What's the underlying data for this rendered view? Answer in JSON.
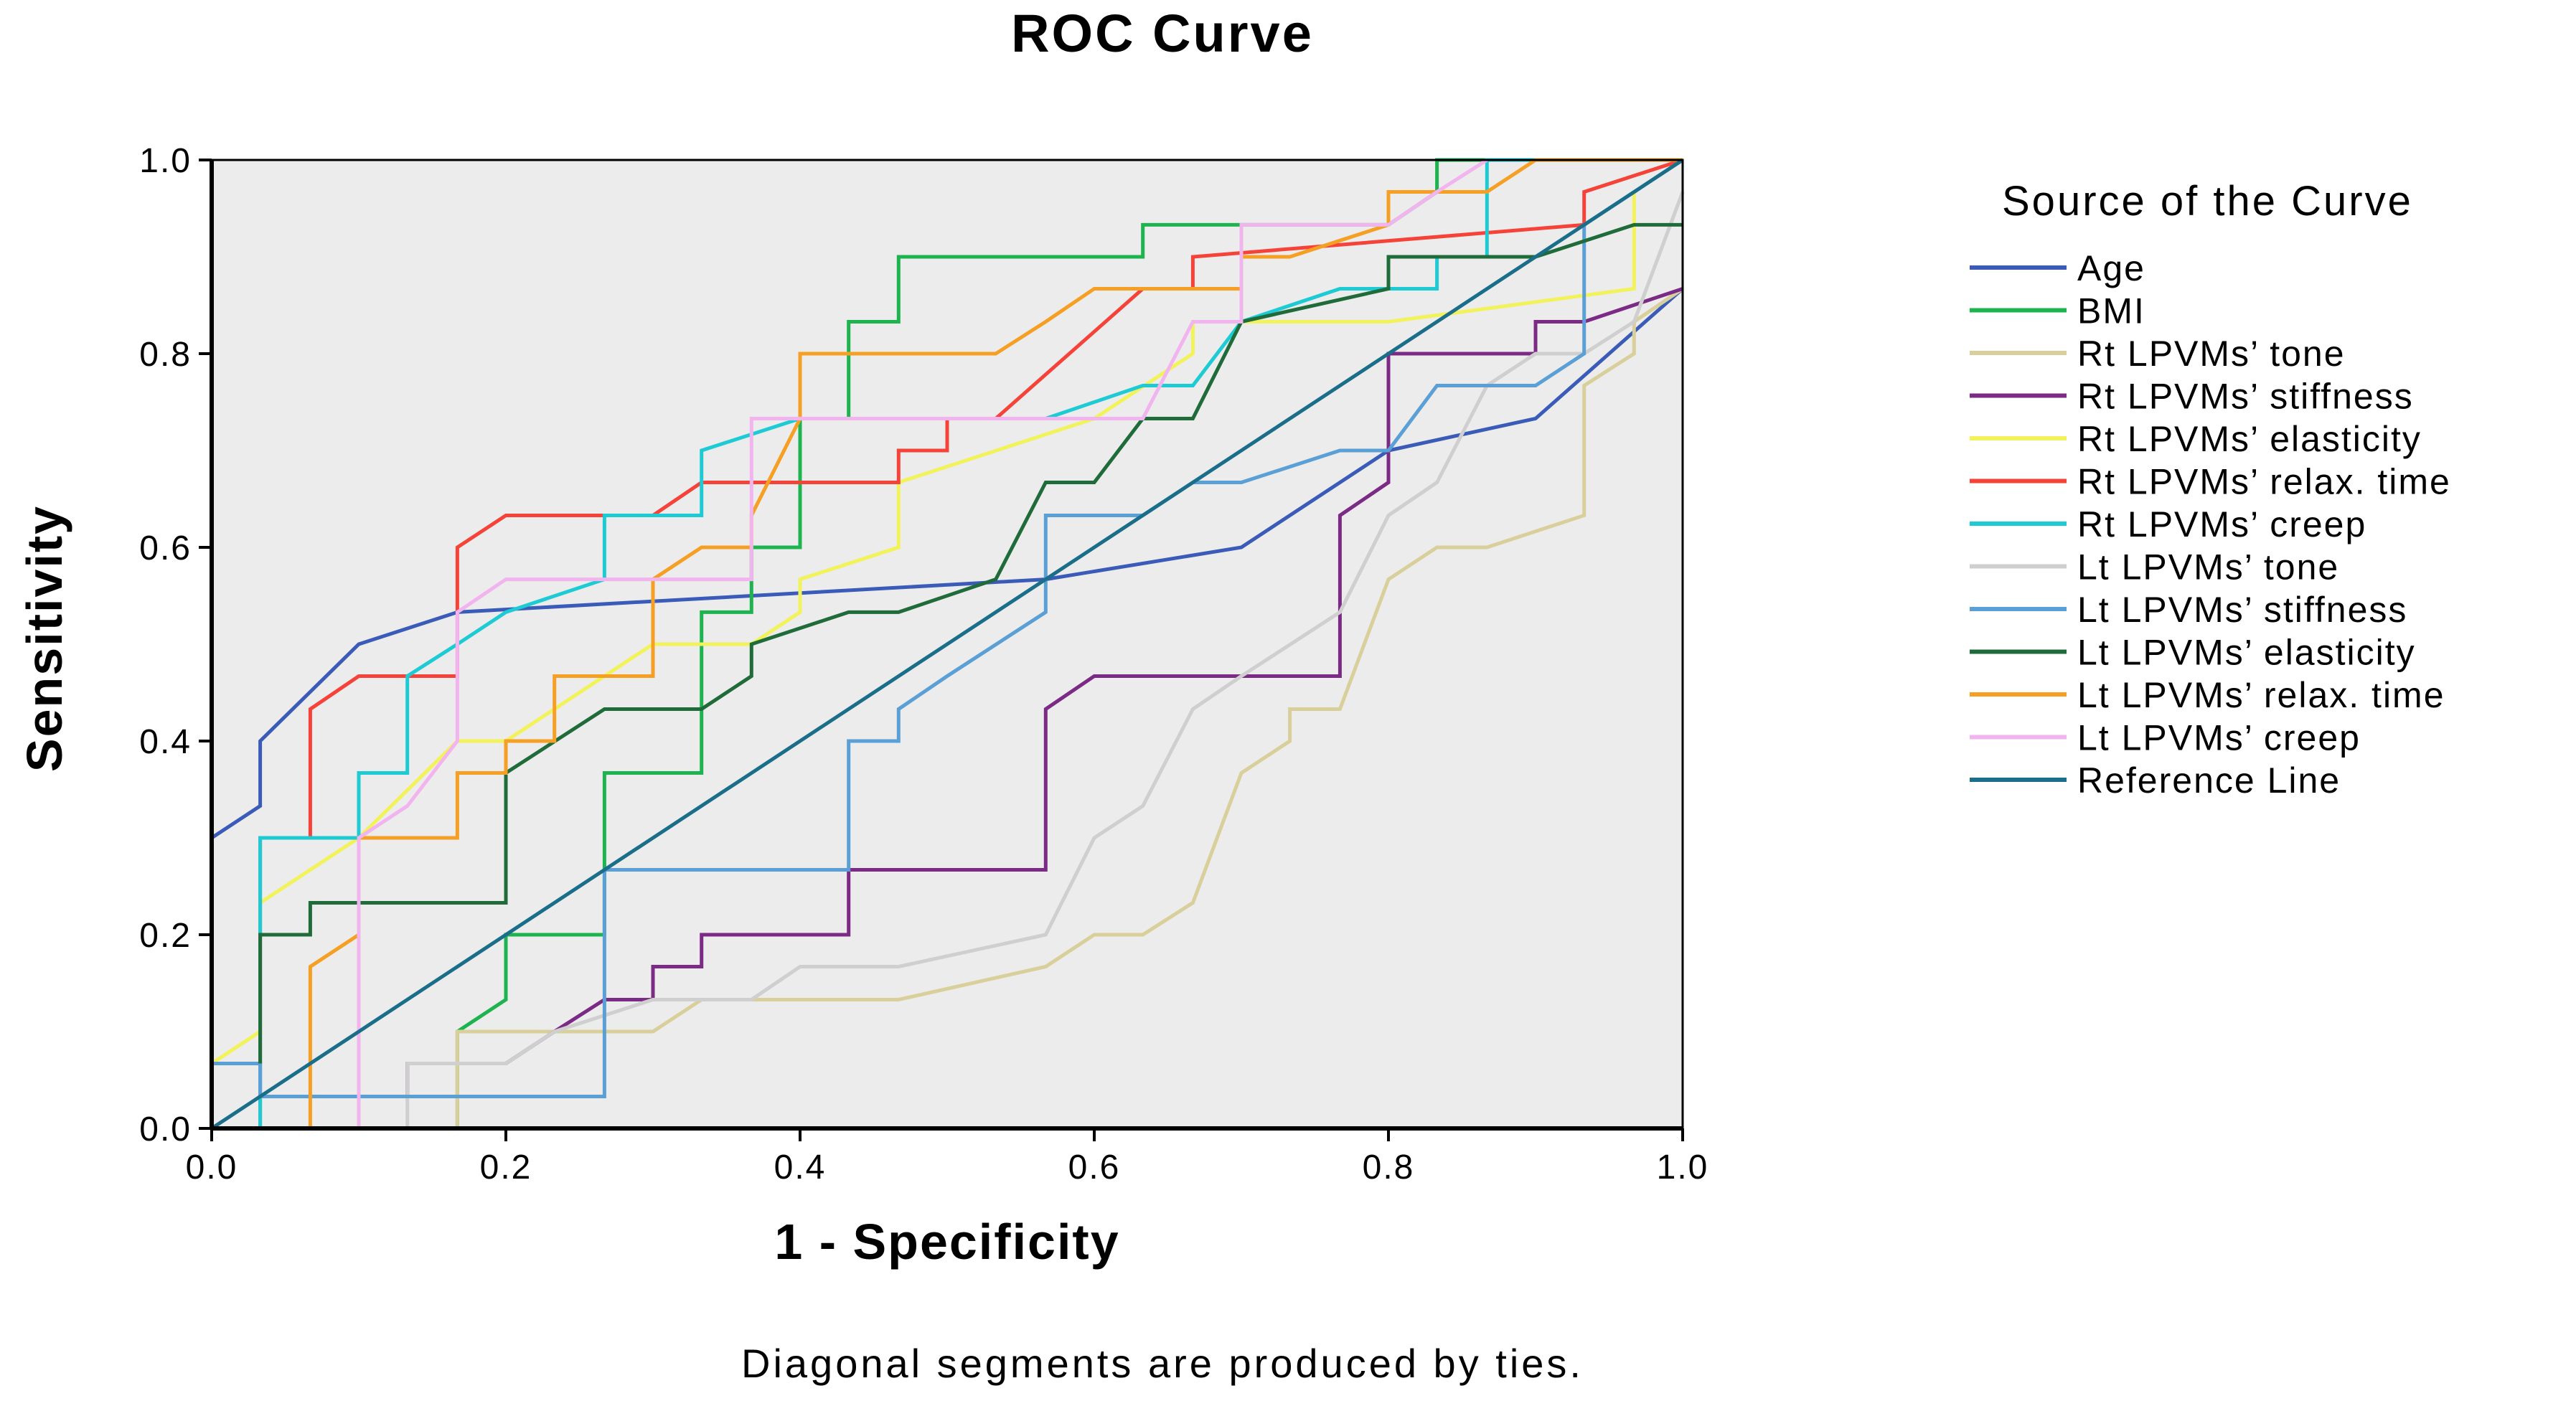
{
  "chart_data": {
    "type": "line",
    "title": "ROC Curve",
    "xlabel": "1 - Specificity",
    "ylabel": "Sensitivity",
    "xlim": [
      0,
      1
    ],
    "ylim": [
      0,
      1
    ],
    "x_ticks": [
      "0.0",
      "0.2",
      "0.4",
      "0.6",
      "0.8",
      "1.0"
    ],
    "y_ticks": [
      "0.0",
      "0.2",
      "0.4",
      "0.6",
      "0.8",
      "1.0"
    ],
    "grid": false,
    "plot_background": "#ececec",
    "legend": {
      "title": "Source of the Curve",
      "position": "right"
    },
    "footnote": "Diagonal segments are produced by ties.",
    "series": [
      {
        "name": "Age",
        "color": "#3a5cb8",
        "x": [
          0,
          0,
          0.033,
          0.033,
          0.1,
          0.167,
          0.567,
          0.7,
          0.8,
          0.9,
          1.0
        ],
        "y": [
          0,
          0.3,
          0.333,
          0.4,
          0.5,
          0.533,
          0.567,
          0.6,
          0.7,
          0.733,
          0.867
        ]
      },
      {
        "name": "BMI",
        "color": "#1db34f",
        "x": [
          0.167,
          0.167,
          0.2,
          0.2,
          0.267,
          0.267,
          0.333,
          0.333,
          0.367,
          0.367,
          0.4,
          0.4,
          0.433,
          0.433,
          0.467,
          0.467,
          0.633,
          0.633,
          0.8,
          0.833,
          0.833,
          1.0
        ],
        "y": [
          0,
          0.1,
          0.133,
          0.2,
          0.2,
          0.367,
          0.367,
          0.533,
          0.533,
          0.6,
          0.6,
          0.733,
          0.733,
          0.833,
          0.833,
          0.9,
          0.9,
          0.933,
          0.933,
          0.967,
          1.0,
          1.0
        ]
      },
      {
        "name": "Rt LPVMs’ tone",
        "color": "#d9cf9b",
        "x": [
          0.167,
          0.167,
          0.3,
          0.333,
          0.467,
          0.567,
          0.6,
          0.633,
          0.667,
          0.7,
          0.7,
          0.733,
          0.733,
          0.767,
          0.8,
          0.833,
          0.867,
          0.933,
          0.933,
          0.967,
          0.967,
          1.0
        ],
        "y": [
          0,
          0.1,
          0.1,
          0.133,
          0.133,
          0.167,
          0.2,
          0.2,
          0.233,
          0.367,
          0.367,
          0.4,
          0.433,
          0.433,
          0.567,
          0.6,
          0.6,
          0.633,
          0.767,
          0.8,
          0.833,
          0.867
        ]
      },
      {
        "name": "Rt LPVMs’ stiffness",
        "color": "#7b2a86",
        "x": [
          0.1,
          0.1,
          0.133,
          0.133,
          0.2,
          0.233,
          0.267,
          0.3,
          0.3,
          0.333,
          0.333,
          0.433,
          0.433,
          0.567,
          0.567,
          0.6,
          0.767,
          0.767,
          0.8,
          0.8,
          0.9,
          0.9,
          0.933,
          0.933,
          1.0
        ],
        "y": [
          0,
          0.033,
          0.033,
          0.067,
          0.067,
          0.1,
          0.133,
          0.133,
          0.167,
          0.167,
          0.2,
          0.2,
          0.267,
          0.267,
          0.433,
          0.467,
          0.467,
          0.633,
          0.667,
          0.8,
          0.8,
          0.833,
          0.833,
          0.833,
          0.867
        ]
      },
      {
        "name": "Rt LPVMs’ elasticity",
        "color": "#f2f25a",
        "x": [
          0,
          0.033,
          0.033,
          0.067,
          0.1,
          0.167,
          0.2,
          0.267,
          0.3,
          0.367,
          0.4,
          0.4,
          0.467,
          0.467,
          0.6,
          0.667,
          0.667,
          0.7,
          0.8,
          0.967,
          0.967,
          1.0
        ],
        "y": [
          0.067,
          0.1,
          0.233,
          0.267,
          0.3,
          0.4,
          0.4,
          0.467,
          0.5,
          0.5,
          0.533,
          0.567,
          0.6,
          0.667,
          0.733,
          0.8,
          0.833,
          0.833,
          0.833,
          0.867,
          0.967,
          1.0
        ]
      },
      {
        "name": "Rt LPVMs’ relax. time",
        "color": "#f5433a",
        "x": [
          0.033,
          0.033,
          0.067,
          0.067,
          0.1,
          0.167,
          0.167,
          0.2,
          0.3,
          0.333,
          0.4,
          0.4,
          0.467,
          0.467,
          0.5,
          0.5,
          0.533,
          0.533,
          0.633,
          0.667,
          0.667,
          0.933,
          0.933,
          1.0
        ],
        "y": [
          0,
          0.3,
          0.3,
          0.433,
          0.467,
          0.467,
          0.6,
          0.633,
          0.633,
          0.667,
          0.667,
          0.667,
          0.667,
          0.7,
          0.7,
          0.733,
          0.733,
          0.733,
          0.867,
          0.867,
          0.9,
          0.933,
          0.967,
          1.0
        ]
      },
      {
        "name": "Rt LPVMs’ creep",
        "color": "#1ecbd4",
        "x": [
          0.033,
          0.033,
          0.1,
          0.1,
          0.133,
          0.133,
          0.167,
          0.2,
          0.267,
          0.267,
          0.333,
          0.333,
          0.4,
          0.4,
          0.567,
          0.633,
          0.667,
          0.7,
          0.767,
          0.833,
          0.833,
          0.867,
          0.867,
          1.0
        ],
        "y": [
          0,
          0.3,
          0.3,
          0.367,
          0.367,
          0.467,
          0.5,
          0.533,
          0.567,
          0.633,
          0.633,
          0.7,
          0.733,
          0.733,
          0.733,
          0.767,
          0.767,
          0.833,
          0.867,
          0.867,
          0.9,
          0.9,
          1.0,
          1.0
        ]
      },
      {
        "name": "Lt LPVMs’ tone",
        "color": "#cfcfcf",
        "x": [
          0.133,
          0.133,
          0.2,
          0.233,
          0.3,
          0.367,
          0.4,
          0.467,
          0.567,
          0.6,
          0.633,
          0.667,
          0.7,
          0.767,
          0.8,
          0.833,
          0.867,
          0.9,
          0.933,
          0.967,
          1.0
        ],
        "y": [
          0,
          0.067,
          0.067,
          0.1,
          0.133,
          0.133,
          0.167,
          0.167,
          0.2,
          0.3,
          0.333,
          0.433,
          0.467,
          0.533,
          0.633,
          0.667,
          0.767,
          0.8,
          0.8,
          0.833,
          0.967
        ]
      },
      {
        "name": "Lt LPVMs’ stiffness",
        "color": "#5aa0d6",
        "x": [
          0,
          0.033,
          0.033,
          0.267,
          0.267,
          0.433,
          0.433,
          0.467,
          0.467,
          0.5,
          0.5,
          0.567,
          0.567,
          0.633,
          0.667,
          0.7,
          0.767,
          0.8,
          0.833,
          0.867,
          0.9,
          0.933,
          0.933,
          0.967,
          1.0
        ],
        "y": [
          0.067,
          0.067,
          0.033,
          0.033,
          0.267,
          0.267,
          0.4,
          0.4,
          0.433,
          0.467,
          0.467,
          0.533,
          0.633,
          0.633,
          0.667,
          0.667,
          0.7,
          0.7,
          0.767,
          0.767,
          0.767,
          0.8,
          0.933,
          0.967,
          1.0
        ]
      },
      {
        "name": "Lt LPVMs’ elasticity",
        "color": "#1f6b3a",
        "x": [
          0.033,
          0.033,
          0.067,
          0.067,
          0.1,
          0.2,
          0.2,
          0.267,
          0.333,
          0.367,
          0.367,
          0.433,
          0.467,
          0.533,
          0.533,
          0.567,
          0.6,
          0.633,
          0.667,
          0.7,
          0.8,
          0.8,
          0.9,
          0.967,
          1.0
        ],
        "y": [
          0.067,
          0.2,
          0.2,
          0.233,
          0.233,
          0.233,
          0.367,
          0.433,
          0.433,
          0.467,
          0.5,
          0.533,
          0.533,
          0.567,
          0.567,
          0.667,
          0.667,
          0.733,
          0.733,
          0.833,
          0.867,
          0.9,
          0.9,
          0.933,
          0.933
        ]
      },
      {
        "name": "Lt LPVMs’ relax. time",
        "color": "#f5a024",
        "x": [
          0.067,
          0.067,
          0.1,
          0.1,
          0.133,
          0.167,
          0.167,
          0.2,
          0.2,
          0.233,
          0.233,
          0.267,
          0.3,
          0.3,
          0.333,
          0.367,
          0.367,
          0.4,
          0.4,
          0.533,
          0.567,
          0.6,
          0.7,
          0.7,
          0.733,
          0.8,
          0.8,
          0.867,
          0.867,
          0.9,
          1.0
        ],
        "y": [
          0,
          0.167,
          0.2,
          0.3,
          0.3,
          0.3,
          0.367,
          0.367,
          0.4,
          0.4,
          0.467,
          0.467,
          0.467,
          0.567,
          0.6,
          0.6,
          0.633,
          0.733,
          0.8,
          0.8,
          0.833,
          0.867,
          0.867,
          0.9,
          0.9,
          0.933,
          0.967,
          0.967,
          0.967,
          1.0,
          1.0
        ]
      },
      {
        "name": "Lt LPVMs’ creep",
        "color": "#f2b4ee",
        "x": [
          0.1,
          0.1,
          0.133,
          0.167,
          0.167,
          0.2,
          0.367,
          0.367,
          0.4,
          0.633,
          0.667,
          0.7,
          0.7,
          0.8,
          0.8,
          0.833,
          0.833,
          0.867
        ],
        "y": [
          0,
          0.3,
          0.333,
          0.4,
          0.533,
          0.567,
          0.567,
          0.733,
          0.733,
          0.733,
          0.833,
          0.833,
          0.933,
          0.933,
          0.933,
          0.967,
          0.967,
          1.0
        ]
      },
      {
        "name": "Reference Line",
        "color": "#1a6e8a",
        "x": [
          0,
          1
        ],
        "y": [
          0,
          1
        ]
      }
    ]
  }
}
